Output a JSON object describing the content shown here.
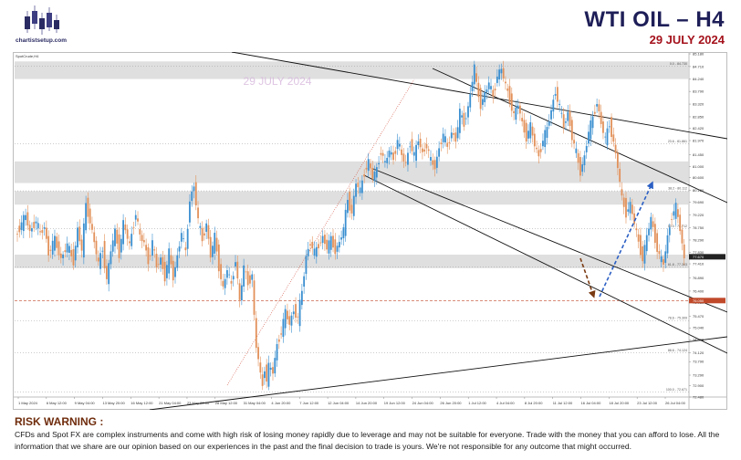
{
  "header": {
    "brand": "chartistsetup.com",
    "title": "WTI OIL  –  H4",
    "date": "29 JULY 2024",
    "watermark": "29 JULY 2024"
  },
  "chart_meta": {
    "symbol": "SpotCrude,H4"
  },
  "chart_data": {
    "type": "line",
    "title": "WTI OIL – H4",
    "xlabel": "",
    "ylabel": "",
    "ylim": [
      72.48,
      85.18
    ],
    "price_ticks": [
      "85.180",
      "84.710",
      "84.240",
      "83.790",
      "83.320",
      "82.850",
      "82.420",
      "81.970",
      "81.450",
      "81.000",
      "80.600",
      "80.120",
      "79.690",
      "79.220",
      "78.750",
      "78.290",
      "77.830",
      "77.410",
      "76.890",
      "76.400",
      "75.980",
      "75.470",
      "75.040",
      "74.600",
      "74.120",
      "73.790",
      "73.290",
      "72.900",
      "72.480"
    ],
    "x_ticks": [
      "1 May 2024",
      "6 May 12:00",
      "9 May 04:00",
      "13 May 20:00",
      "16 May 12:00",
      "21 May 04:00",
      "23 May 20:00",
      "28 May 12:00",
      "31 May 04:00",
      "4 Jun 20:00",
      "7 Jun 12:00",
      "12 Jun 04:00",
      "14 Jun 20:00",
      "19 Jun 12:00",
      "24 Jun 04:00",
      "26 Jun 20:00",
      "1 Jul 12:00",
      "4 Jul 04:00",
      "8 Jul 20:00",
      "11 Jul 12:00",
      "16 Jul 04:00",
      "18 Jul 20:00",
      "23 Jul 12:00",
      "26 Jul 04:00"
    ],
    "price_path": [
      {
        "i": 0,
        "p": 78.4
      },
      {
        "i": 3,
        "p": 78.9
      },
      {
        "i": 5,
        "p": 79.2
      },
      {
        "i": 7,
        "p": 78.6
      },
      {
        "i": 10,
        "p": 79.0
      },
      {
        "i": 12,
        "p": 78.5
      },
      {
        "i": 14,
        "p": 78.8
      },
      {
        "i": 16,
        "p": 77.8
      },
      {
        "i": 19,
        "p": 78.3
      },
      {
        "i": 22,
        "p": 77.6
      },
      {
        "i": 25,
        "p": 78.1
      },
      {
        "i": 28,
        "p": 77.5
      },
      {
        "i": 30,
        "p": 78.7
      },
      {
        "i": 32,
        "p": 77.9
      },
      {
        "i": 34,
        "p": 79.6
      },
      {
        "i": 36,
        "p": 79.0
      },
      {
        "i": 38,
        "p": 78.2
      },
      {
        "i": 40,
        "p": 77.4
      },
      {
        "i": 42,
        "p": 78.0
      },
      {
        "i": 44,
        "p": 76.8
      },
      {
        "i": 46,
        "p": 77.9
      },
      {
        "i": 48,
        "p": 78.6
      },
      {
        "i": 50,
        "p": 77.8
      },
      {
        "i": 52,
        "p": 78.9
      },
      {
        "i": 55,
        "p": 78.1
      },
      {
        "i": 58,
        "p": 79.3
      },
      {
        "i": 60,
        "p": 78.4
      },
      {
        "i": 62,
        "p": 78.2
      },
      {
        "i": 64,
        "p": 77.5
      },
      {
        "i": 66,
        "p": 78.2
      },
      {
        "i": 68,
        "p": 77.3
      },
      {
        "i": 70,
        "p": 77.6
      },
      {
        "i": 72,
        "p": 76.9
      },
      {
        "i": 74,
        "p": 77.8
      },
      {
        "i": 76,
        "p": 76.9
      },
      {
        "i": 78,
        "p": 77.7
      },
      {
        "i": 80,
        "p": 78.6
      },
      {
        "i": 82,
        "p": 77.8
      },
      {
        "i": 84,
        "p": 79.8
      },
      {
        "i": 86,
        "p": 80.3
      },
      {
        "i": 88,
        "p": 79.0
      },
      {
        "i": 90,
        "p": 78.3
      },
      {
        "i": 92,
        "p": 78.9
      },
      {
        "i": 94,
        "p": 77.7
      },
      {
        "i": 96,
        "p": 78.4
      },
      {
        "i": 98,
        "p": 77.3
      },
      {
        "i": 100,
        "p": 76.5
      },
      {
        "i": 102,
        "p": 77.2
      },
      {
        "i": 104,
        "p": 76.6
      },
      {
        "i": 106,
        "p": 77.6
      },
      {
        "i": 108,
        "p": 76.0
      },
      {
        "i": 110,
        "p": 77.3
      },
      {
        "i": 112,
        "p": 76.7
      },
      {
        "i": 114,
        "p": 77.0
      },
      {
        "i": 115,
        "p": 75.4
      },
      {
        "i": 116,
        "p": 74.3
      },
      {
        "i": 117,
        "p": 73.9
      },
      {
        "i": 118,
        "p": 73.3
      },
      {
        "i": 119,
        "p": 72.9
      },
      {
        "i": 120,
        "p": 73.6
      },
      {
        "i": 121,
        "p": 73.1
      },
      {
        "i": 122,
        "p": 73.6
      },
      {
        "i": 124,
        "p": 73.4
      },
      {
        "i": 126,
        "p": 74.4
      },
      {
        "i": 128,
        "p": 74.9
      },
      {
        "i": 130,
        "p": 75.6
      },
      {
        "i": 132,
        "p": 75.2
      },
      {
        "i": 134,
        "p": 75.7
      },
      {
        "i": 136,
        "p": 75.4
      },
      {
        "i": 138,
        "p": 76.4
      },
      {
        "i": 140,
        "p": 77.7
      },
      {
        "i": 142,
        "p": 78.2
      },
      {
        "i": 144,
        "p": 77.8
      },
      {
        "i": 146,
        "p": 78.1
      },
      {
        "i": 148,
        "p": 78.4
      },
      {
        "i": 150,
        "p": 78.0
      },
      {
        "i": 152,
        "p": 78.3
      },
      {
        "i": 154,
        "p": 77.9
      },
      {
        "i": 156,
        "p": 78.2
      },
      {
        "i": 158,
        "p": 78.7
      },
      {
        "i": 160,
        "p": 79.8
      },
      {
        "i": 162,
        "p": 79.3
      },
      {
        "i": 164,
        "p": 80.4
      },
      {
        "i": 166,
        "p": 80.1
      },
      {
        "i": 168,
        "p": 80.8
      },
      {
        "i": 170,
        "p": 81.2
      },
      {
        "i": 172,
        "p": 80.6
      },
      {
        "i": 174,
        "p": 80.9
      },
      {
        "i": 176,
        "p": 81.6
      },
      {
        "i": 178,
        "p": 81.1
      },
      {
        "i": 180,
        "p": 81.6
      },
      {
        "i": 182,
        "p": 81.3
      },
      {
        "i": 184,
        "p": 82.0
      },
      {
        "i": 186,
        "p": 81.4
      },
      {
        "i": 188,
        "p": 81.1
      },
      {
        "i": 190,
        "p": 81.9
      },
      {
        "i": 192,
        "p": 81.4
      },
      {
        "i": 194,
        "p": 82.0
      },
      {
        "i": 196,
        "p": 81.5
      },
      {
        "i": 198,
        "p": 81.8
      },
      {
        "i": 200,
        "p": 81.2
      },
      {
        "i": 202,
        "p": 81.0
      },
      {
        "i": 204,
        "p": 81.7
      },
      {
        "i": 206,
        "p": 82.2
      },
      {
        "i": 208,
        "p": 81.7
      },
      {
        "i": 210,
        "p": 82.3
      },
      {
        "i": 212,
        "p": 82.0
      },
      {
        "i": 214,
        "p": 83.0
      },
      {
        "i": 216,
        "p": 82.6
      },
      {
        "i": 218,
        "p": 83.2
      },
      {
        "i": 220,
        "p": 84.2
      },
      {
        "i": 221,
        "p": 84.7
      },
      {
        "i": 222,
        "p": 84.0
      },
      {
        "i": 224,
        "p": 83.3
      },
      {
        "i": 226,
        "p": 83.7
      },
      {
        "i": 228,
        "p": 84.1
      },
      {
        "i": 230,
        "p": 83.6
      },
      {
        "i": 232,
        "p": 84.4
      },
      {
        "i": 234,
        "p": 84.6
      },
      {
        "i": 236,
        "p": 84.0
      },
      {
        "i": 238,
        "p": 83.5
      },
      {
        "i": 240,
        "p": 82.9
      },
      {
        "i": 242,
        "p": 83.3
      },
      {
        "i": 244,
        "p": 82.6
      },
      {
        "i": 246,
        "p": 82.1
      },
      {
        "i": 248,
        "p": 82.5
      },
      {
        "i": 250,
        "p": 81.8
      },
      {
        "i": 252,
        "p": 81.4
      },
      {
        "i": 254,
        "p": 82.0
      },
      {
        "i": 256,
        "p": 82.4
      },
      {
        "i": 258,
        "p": 83.1
      },
      {
        "i": 260,
        "p": 83.8
      },
      {
        "i": 262,
        "p": 83.2
      },
      {
        "i": 264,
        "p": 82.5
      },
      {
        "i": 266,
        "p": 83.0
      },
      {
        "i": 268,
        "p": 82.1
      },
      {
        "i": 270,
        "p": 81.5
      },
      {
        "i": 272,
        "p": 80.8
      },
      {
        "i": 274,
        "p": 81.4
      },
      {
        "i": 276,
        "p": 82.3
      },
      {
        "i": 278,
        "p": 82.8
      },
      {
        "i": 280,
        "p": 83.4
      },
      {
        "i": 282,
        "p": 82.6
      },
      {
        "i": 284,
        "p": 82.0
      },
      {
        "i": 286,
        "p": 82.6
      },
      {
        "i": 288,
        "p": 81.9
      },
      {
        "i": 290,
        "p": 81.0
      },
      {
        "i": 292,
        "p": 79.8
      },
      {
        "i": 294,
        "p": 79.3
      },
      {
        "i": 296,
        "p": 79.6
      },
      {
        "i": 298,
        "p": 78.9
      },
      {
        "i": 300,
        "p": 78.2
      },
      {
        "i": 302,
        "p": 77.6
      },
      {
        "i": 304,
        "p": 78.4
      },
      {
        "i": 306,
        "p": 79.1
      },
      {
        "i": 308,
        "p": 78.3
      },
      {
        "i": 310,
        "p": 77.7
      },
      {
        "i": 312,
        "p": 77.4
      },
      {
        "i": 314,
        "p": 78.4
      },
      {
        "i": 316,
        "p": 79.2
      },
      {
        "i": 318,
        "p": 79.5
      },
      {
        "i": 320,
        "p": 78.7
      },
      {
        "i": 322,
        "p": 77.6
      }
    ],
    "current_price": {
      "label": "77.670",
      "value": 77.67
    },
    "dashed_level": {
      "label": "76.050",
      "value": 76.05
    },
    "fib_levels": [
      {
        "label": "0.0 - 84.730",
        "value": 84.73
      },
      {
        "label": "23.6 - 81.861",
        "value": 81.86
      },
      {
        "label": "38.2 - 80.112",
        "value": 80.11
      },
      {
        "label": "50.0 - 78.712",
        "value": 78.71
      },
      {
        "label": "61.8 - 77.303",
        "value": 77.3
      },
      {
        "label": "78.6 - 75.309",
        "value": 75.31
      },
      {
        "label": "88.6 - 74.124",
        "value": 74.12
      },
      {
        "label": "100.0 - 72.671",
        "value": 72.67
      }
    ],
    "zones": [
      {
        "from": 84.25,
        "to": 84.9
      },
      {
        "from": 80.4,
        "to": 81.2
      },
      {
        "from": 79.6,
        "to": 80.1
      },
      {
        "from": 77.25,
        "to": 77.75
      }
    ],
    "colors": {
      "bull": "#3a8fd0",
      "bear": "#e2915a",
      "trendline": "#111111",
      "arrow_up": "#2b5fc4",
      "arrow_down": "#7a3a12",
      "fib": "#555555",
      "dashed_level": "#c0492a"
    }
  },
  "risk": {
    "title": "RISK WARNING :",
    "text": "CFDs and Spot FX are complex instruments and come with high risk of losing money rapidly due to leverage and may not be suitable for everyone. Trade with the money that you can afford to lose. All the information that we  share are our opinion based on our experiences in the past and the final decision to trade is yours. We're not responsible for any outcome that might occurred."
  }
}
